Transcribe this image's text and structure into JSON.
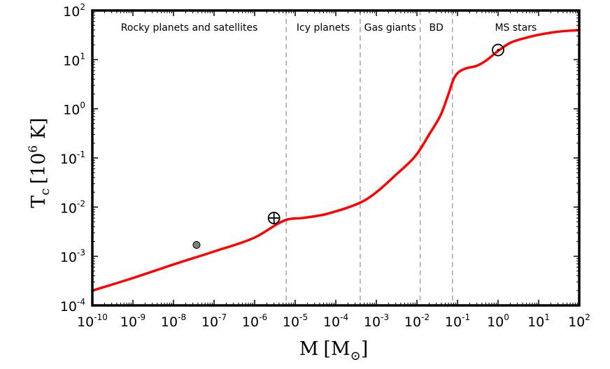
{
  "chart_data": {
    "type": "line",
    "title": "",
    "xlabel": "M [M⊙]",
    "xlabel_main": "M",
    "xlabel_unit": "M",
    "xlabel_unit_sub": "⊙",
    "ylabel": "Tc [10^6 K]",
    "ylabel_main": "T",
    "ylabel_sub": "c",
    "ylabel_unit_pre": "[10",
    "ylabel_unit_exp": "6",
    "ylabel_unit_post": " K]",
    "xscale": "log",
    "yscale": "log",
    "xlim": [
      1e-10,
      100
    ],
    "ylim": [
      0.0001,
      100
    ],
    "grid": false,
    "colors": {
      "curve": "#ff0000",
      "dividers": "#aaaaaa",
      "marker_fill": "#808080"
    },
    "x_ticks": [
      {
        "base": "10",
        "exp": "-10",
        "value": 1e-10
      },
      {
        "base": "10",
        "exp": "-9",
        "value": 1e-09
      },
      {
        "base": "10",
        "exp": "-8",
        "value": 1e-08
      },
      {
        "base": "10",
        "exp": "-7",
        "value": 1e-07
      },
      {
        "base": "10",
        "exp": "-6",
        "value": 1e-06
      },
      {
        "base": "10",
        "exp": "-5",
        "value": 1e-05
      },
      {
        "base": "10",
        "exp": "-4",
        "value": 0.0001
      },
      {
        "base": "10",
        "exp": "-3",
        "value": 0.001
      },
      {
        "base": "10",
        "exp": "-2",
        "value": 0.01
      },
      {
        "base": "10",
        "exp": "-1",
        "value": 0.1
      },
      {
        "base": "10",
        "exp": "0",
        "value": 1
      },
      {
        "base": "10",
        "exp": "1",
        "value": 10
      },
      {
        "base": "10",
        "exp": "2",
        "value": 100
      }
    ],
    "y_ticks": [
      {
        "base": "10",
        "exp": "-4",
        "value": 0.0001
      },
      {
        "base": "10",
        "exp": "-3",
        "value": 0.001
      },
      {
        "base": "10",
        "exp": "-2",
        "value": 0.01
      },
      {
        "base": "10",
        "exp": "-1",
        "value": 0.1
      },
      {
        "base": "10",
        "exp": "0",
        "value": 1
      },
      {
        "base": "10",
        "exp": "1",
        "value": 10
      },
      {
        "base": "10",
        "exp": "2",
        "value": 100
      }
    ],
    "series": [
      {
        "x": [
          1e-10,
          1e-09,
          1e-08,
          1e-07,
          1e-06,
          6e-06,
          1.5e-05,
          5e-05,
          0.0001,
          0.0002,
          0.0005,
          0.001,
          0.003,
          0.01,
          0.02,
          0.04,
          0.06,
          0.08,
          0.1,
          0.15,
          0.3,
          0.5,
          1,
          2,
          5,
          10,
          30,
          100
        ],
        "y": [
          0.0002,
          0.00036,
          0.00068,
          0.00125,
          0.0024,
          0.0055,
          0.006,
          0.007,
          0.0082,
          0.0098,
          0.0135,
          0.02,
          0.045,
          0.12,
          0.3,
          0.8,
          2.0,
          4.0,
          5.3,
          6.5,
          7.5,
          9.5,
          15,
          22,
          28,
          32,
          37,
          40
        ]
      }
    ],
    "regions": [
      {
        "label": "Rocky planets and satellites",
        "x_range": [
          1e-10,
          6e-06
        ]
      },
      {
        "label": "Icy planets",
        "x_range": [
          6e-06,
          0.0004
        ]
      },
      {
        "label": "Gas giants",
        "x_range": [
          0.0004,
          0.012
        ]
      },
      {
        "label": "BD",
        "x_range": [
          0.012,
          0.075
        ]
      },
      {
        "label": "MS stars",
        "x_range": [
          0.075,
          100
        ]
      }
    ],
    "divider_x": [
      6e-06,
      0.0004,
      0.012,
      0.075
    ],
    "markers": [
      {
        "symbol": "filled-circle",
        "x": 3.7e-08,
        "y": 0.0017
      },
      {
        "symbol": "earth",
        "x": 3e-06,
        "y": 0.006
      },
      {
        "symbol": "sun",
        "x": 1,
        "y": 15.7
      }
    ]
  }
}
